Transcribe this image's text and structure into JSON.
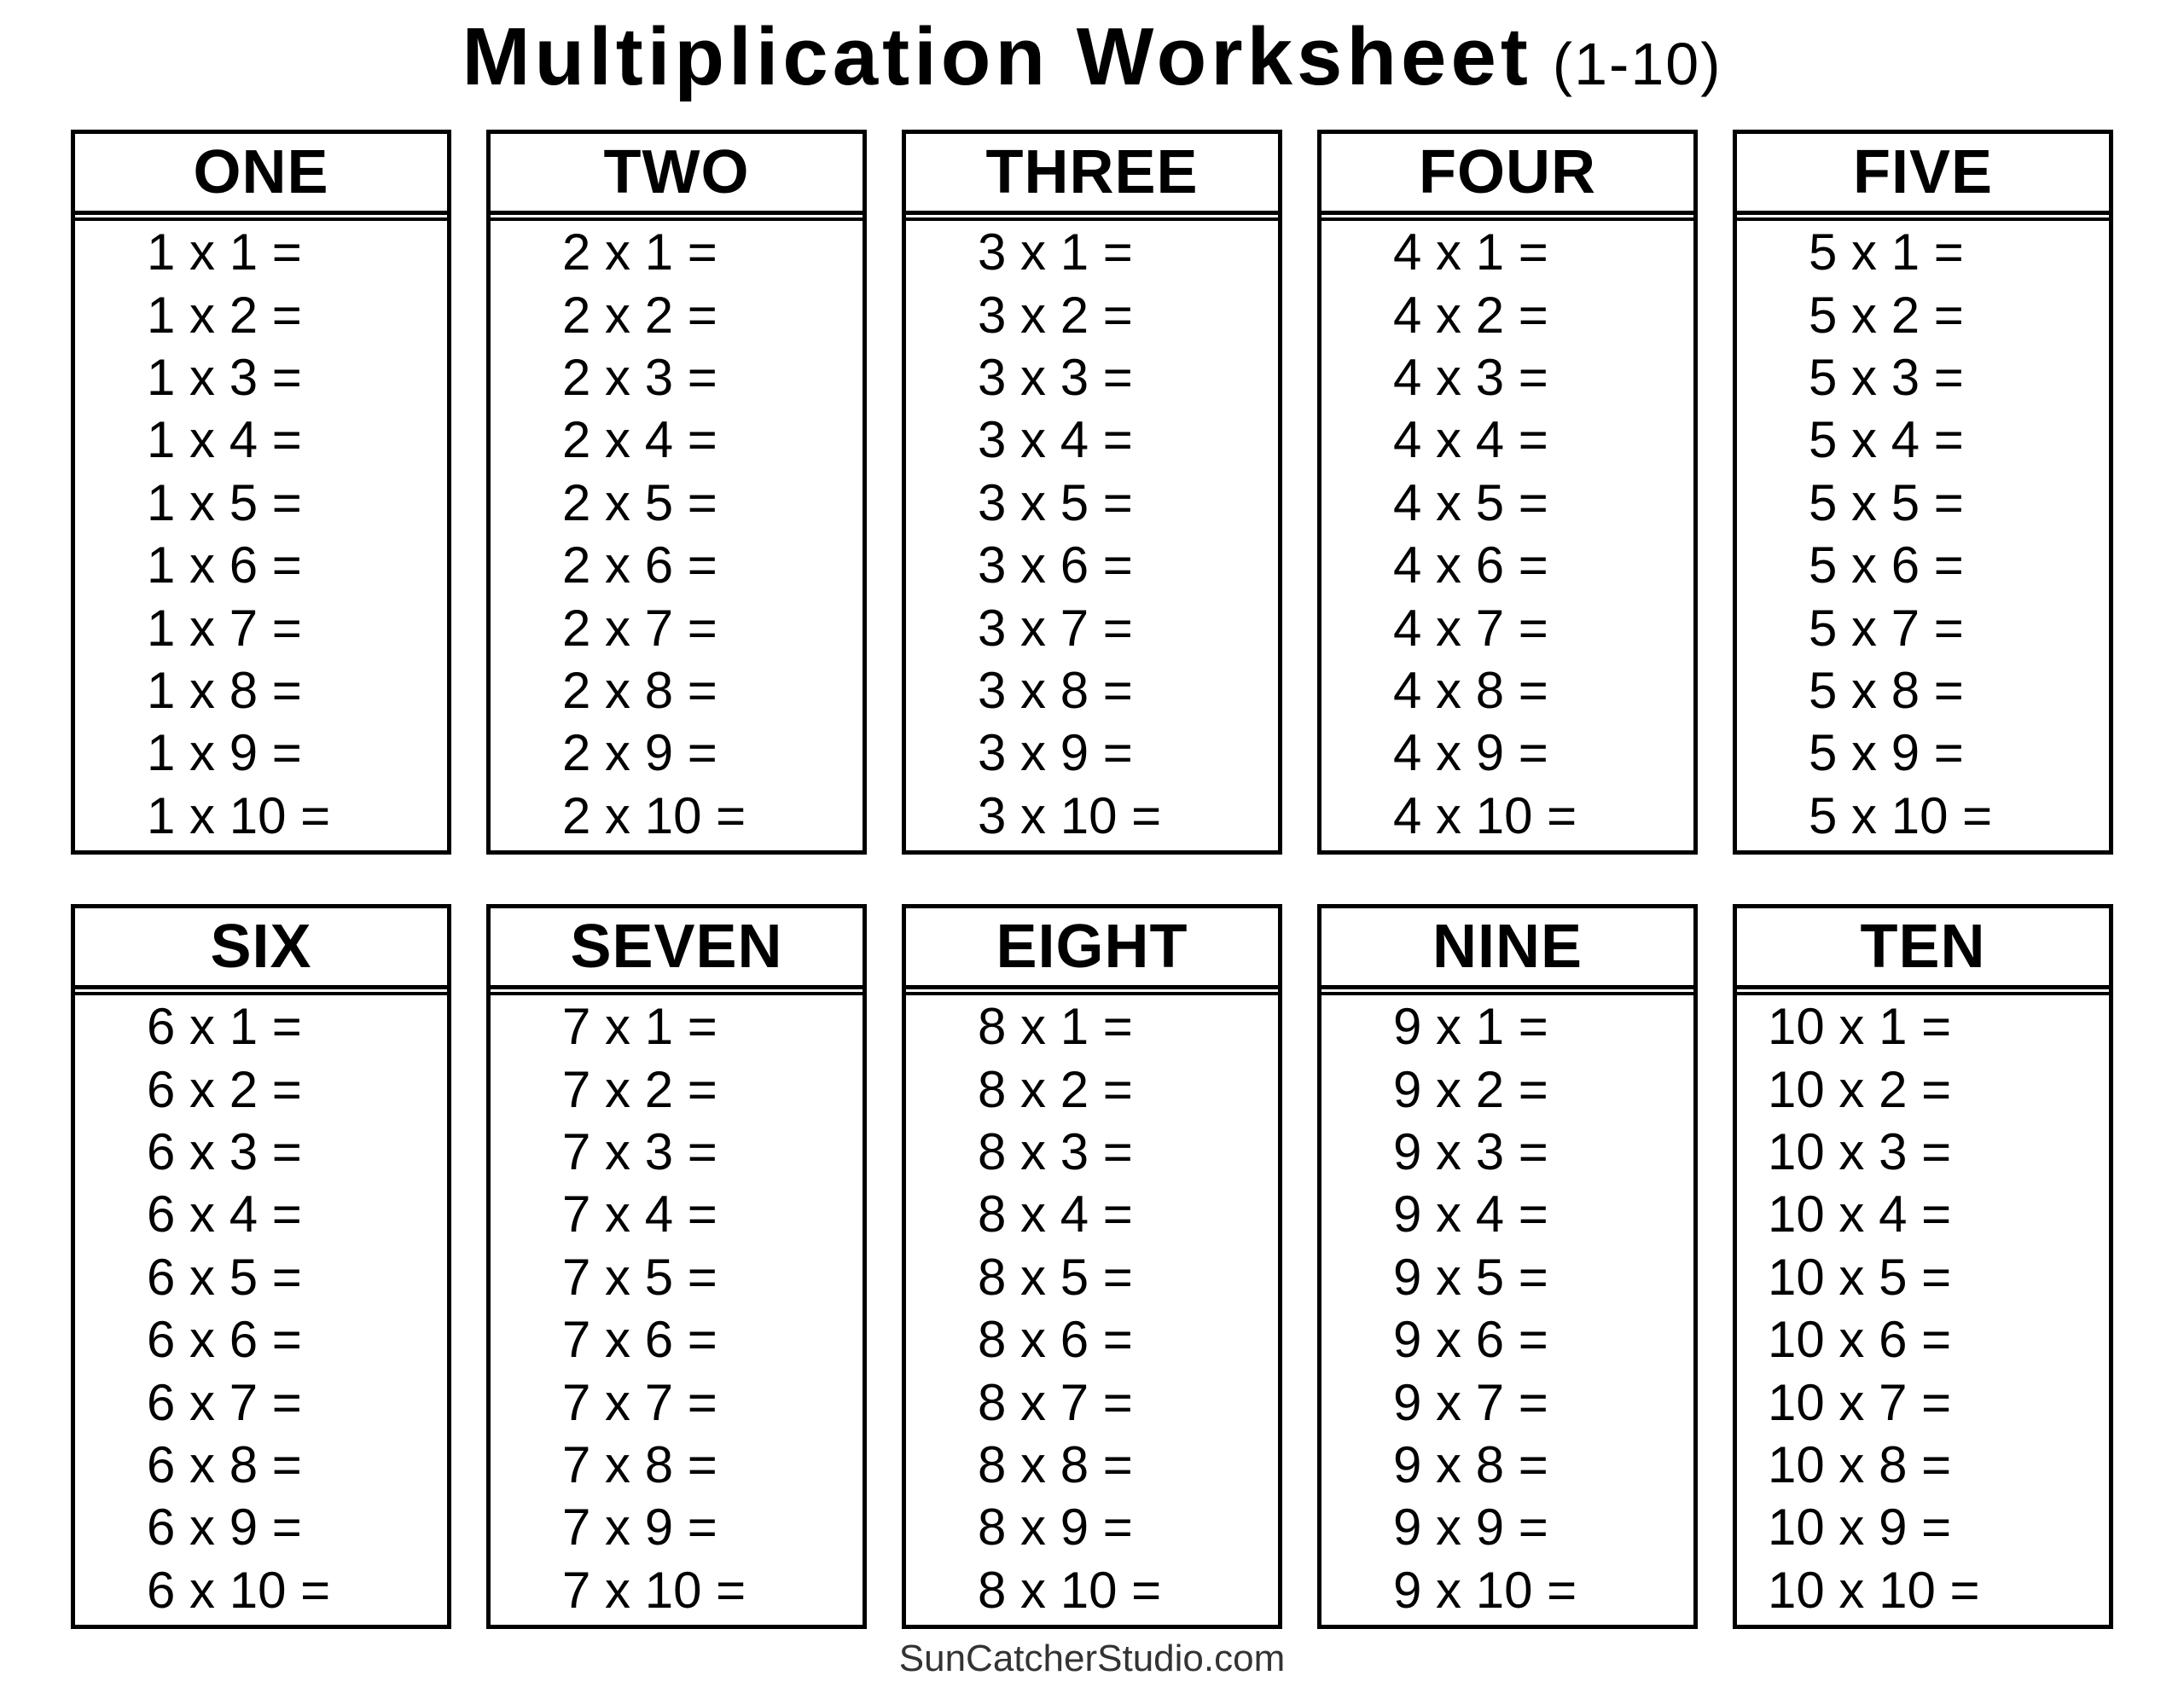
{
  "title": {
    "main": "Multiplication Worksheet",
    "suffix": "(1-10)"
  },
  "footer": {
    "text": "SunCatcherStudio.com"
  },
  "tables": [
    {
      "name": "ONE",
      "multiplier": 1,
      "rows": [
        "1 x 1 =",
        "1 x 2 =",
        "1 x 3 =",
        "1 x 4 =",
        "1 x 5 =",
        "1 x 6 =",
        "1 x 7 =",
        "1 x 8 =",
        "1 x 9 =",
        "1 x 10 ="
      ]
    },
    {
      "name": "TWO",
      "multiplier": 2,
      "rows": [
        "2 x 1 =",
        "2 x 2 =",
        "2 x 3 =",
        "2 x 4 =",
        "2 x 5 =",
        "2 x 6 =",
        "2 x 7 =",
        "2 x 8 =",
        "2 x 9 =",
        "2 x 10 ="
      ]
    },
    {
      "name": "THREE",
      "multiplier": 3,
      "rows": [
        "3 x 1 =",
        "3 x 2 =",
        "3 x 3 =",
        "3 x 4 =",
        "3 x 5 =",
        "3 x 6 =",
        "3 x 7 =",
        "3 x 8 =",
        "3 x 9 =",
        "3 x 10 ="
      ]
    },
    {
      "name": "FOUR",
      "multiplier": 4,
      "rows": [
        "4 x 1 =",
        "4 x 2 =",
        "4 x 3 =",
        "4 x 4 =",
        "4 x 5 =",
        "4 x 6 =",
        "4 x 7 =",
        "4 x 8 =",
        "4 x 9 =",
        "4 x 10 ="
      ]
    },
    {
      "name": "FIVE",
      "multiplier": 5,
      "rows": [
        "5 x 1 =",
        "5 x 2 =",
        "5 x 3 =",
        "5 x 4 =",
        "5 x 5 =",
        "5 x 6 =",
        "5 x 7 =",
        "5 x 8 =",
        "5 x 9 =",
        "5 x 10 ="
      ]
    },
    {
      "name": "SIX",
      "multiplier": 6,
      "rows": [
        "6 x 1 =",
        "6 x 2 =",
        "6 x 3 =",
        "6 x 4 =",
        "6 x 5 =",
        "6 x 6 =",
        "6 x 7 =",
        "6 x 8 =",
        "6 x 9 =",
        "6 x 10 ="
      ]
    },
    {
      "name": "SEVEN",
      "multiplier": 7,
      "rows": [
        "7 x 1 =",
        "7 x 2 =",
        "7 x 3 =",
        "7 x 4 =",
        "7 x 5 =",
        "7 x 6 =",
        "7 x 7 =",
        "7 x 8 =",
        "7 x 9 =",
        "7 x 10 ="
      ]
    },
    {
      "name": "EIGHT",
      "multiplier": 8,
      "rows": [
        "8 x 1 =",
        "8 x 2 =",
        "8 x 3 =",
        "8 x 4 =",
        "8 x 5 =",
        "8 x 6 =",
        "8 x 7 =",
        "8 x 8 =",
        "8 x 9 =",
        "8 x 10 ="
      ]
    },
    {
      "name": "NINE",
      "multiplier": 9,
      "rows": [
        "9 x 1 =",
        "9 x 2 =",
        "9 x 3 =",
        "9 x 4 =",
        "9 x 5 =",
        "9 x 6 =",
        "9 x 7 =",
        "9 x 8 =",
        "9 x 9 =",
        "9 x 10 ="
      ]
    },
    {
      "name": "TEN",
      "multiplier": 10,
      "rows": [
        "10 x 1 =",
        "10 x 2 =",
        "10 x 3 =",
        "10 x 4 =",
        "10 x 5 =",
        "10 x 6 =",
        "10 x 7 =",
        "10 x 8 =",
        "10 x 9 =",
        "10 x 10 ="
      ]
    }
  ]
}
